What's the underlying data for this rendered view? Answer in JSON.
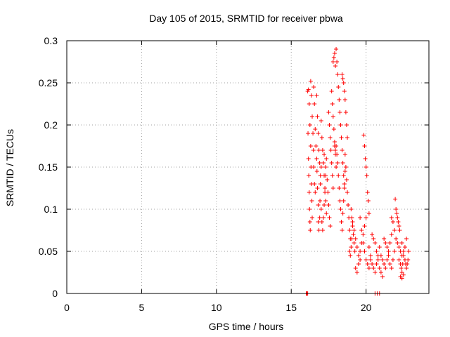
{
  "chart_data": {
    "type": "scatter",
    "title": "Day 105 of 2015, SRMTID for receiver pbwa",
    "xlabel": "GPS time / hours",
    "ylabel": "SRMTID / TECUs",
    "xlim": [
      0,
      24.2
    ],
    "ylim": [
      0,
      0.3
    ],
    "xticks": [
      0,
      5,
      10,
      15,
      20
    ],
    "xtick_labels": [
      "0",
      "5",
      "10",
      "15",
      "20"
    ],
    "yticks": [
      0,
      0.05,
      0.1,
      0.15,
      0.2,
      0.25,
      0.3
    ],
    "ytick_labels": [
      "0",
      "0.05",
      "0.1",
      "0.15",
      "0.2",
      "0.25",
      "0.3"
    ],
    "grid": true,
    "marker": "plus",
    "color": "#ff0000",
    "series": [
      {
        "name": "SRMTID",
        "points": [
          [
            16.0,
            0.0
          ],
          [
            16.05,
            0.0
          ],
          [
            16.1,
            0.0
          ],
          [
            16.1,
            0.24
          ],
          [
            16.12,
            0.19
          ],
          [
            16.15,
            0.16
          ],
          [
            16.17,
            0.14
          ],
          [
            16.2,
            0.12
          ],
          [
            16.22,
            0.1
          ],
          [
            16.25,
            0.085
          ],
          [
            16.27,
            0.075
          ],
          [
            16.15,
            0.242
          ],
          [
            16.2,
            0.225
          ],
          [
            16.25,
            0.2
          ],
          [
            16.3,
            0.175
          ],
          [
            16.32,
            0.15
          ],
          [
            16.35,
            0.13
          ],
          [
            16.38,
            0.11
          ],
          [
            16.4,
            0.09
          ],
          [
            16.3,
            0.252
          ],
          [
            16.35,
            0.235
          ],
          [
            16.4,
            0.21
          ],
          [
            16.45,
            0.19
          ],
          [
            16.48,
            0.17
          ],
          [
            16.5,
            0.15
          ],
          [
            16.55,
            0.13
          ],
          [
            16.6,
            0.12
          ],
          [
            16.5,
            0.245
          ],
          [
            16.55,
            0.225
          ],
          [
            16.6,
            0.195
          ],
          [
            16.65,
            0.175
          ],
          [
            16.7,
            0.16
          ],
          [
            16.72,
            0.145
          ],
          [
            16.75,
            0.125
          ],
          [
            16.8,
            0.105
          ],
          [
            16.8,
            0.085
          ],
          [
            16.85,
            0.075
          ],
          [
            16.9,
            0.09
          ],
          [
            16.92,
            0.11
          ],
          [
            16.95,
            0.13
          ],
          [
            17.0,
            0.15
          ],
          [
            16.7,
            0.235
          ],
          [
            16.75,
            0.21
          ],
          [
            16.8,
            0.19
          ],
          [
            16.85,
            0.17
          ],
          [
            16.9,
            0.155
          ],
          [
            16.95,
            0.14
          ],
          [
            17.0,
            0.205
          ],
          [
            17.05,
            0.185
          ],
          [
            17.1,
            0.17
          ],
          [
            17.15,
            0.155
          ],
          [
            17.2,
            0.14
          ],
          [
            17.25,
            0.125
          ],
          [
            17.3,
            0.11
          ],
          [
            17.35,
            0.095
          ],
          [
            17.0,
            0.1
          ],
          [
            17.05,
            0.085
          ],
          [
            17.1,
            0.075
          ],
          [
            17.15,
            0.09
          ],
          [
            17.2,
            0.105
          ],
          [
            17.25,
            0.12
          ],
          [
            17.3,
            0.14
          ],
          [
            17.35,
            0.16
          ],
          [
            17.2,
            0.165
          ],
          [
            17.3,
            0.15
          ],
          [
            17.4,
            0.135
          ],
          [
            17.45,
            0.12
          ],
          [
            17.5,
            0.105
          ],
          [
            17.55,
            0.09
          ],
          [
            17.6,
            0.08
          ],
          [
            17.5,
            0.215
          ],
          [
            17.55,
            0.2
          ],
          [
            17.6,
            0.185
          ],
          [
            17.65,
            0.17
          ],
          [
            17.7,
            0.155
          ],
          [
            17.75,
            0.14
          ],
          [
            17.8,
            0.125
          ],
          [
            17.7,
            0.24
          ],
          [
            17.75,
            0.225
          ],
          [
            17.8,
            0.21
          ],
          [
            17.85,
            0.195
          ],
          [
            17.9,
            0.18
          ],
          [
            17.95,
            0.165
          ],
          [
            18.0,
            0.15
          ],
          [
            17.8,
            0.275
          ],
          [
            17.85,
            0.28
          ],
          [
            17.9,
            0.285
          ],
          [
            17.95,
            0.27
          ],
          [
            18.0,
            0.29
          ],
          [
            18.05,
            0.275
          ],
          [
            18.1,
            0.26
          ],
          [
            18.15,
            0.245
          ],
          [
            18.2,
            0.23
          ],
          [
            18.25,
            0.215
          ],
          [
            18.3,
            0.2
          ],
          [
            18.35,
            0.185
          ],
          [
            18.4,
            0.17
          ],
          [
            18.45,
            0.155
          ],
          [
            18.5,
            0.14
          ],
          [
            18.55,
            0.125
          ],
          [
            17.9,
            0.175
          ],
          [
            17.95,
            0.17
          ],
          [
            18.0,
            0.175
          ],
          [
            18.05,
            0.165
          ],
          [
            18.1,
            0.155
          ],
          [
            18.15,
            0.14
          ],
          [
            18.2,
            0.125
          ],
          [
            18.25,
            0.11
          ],
          [
            18.3,
            0.1
          ],
          [
            18.35,
            0.085
          ],
          [
            18.4,
            0.075
          ],
          [
            18.45,
            0.095
          ],
          [
            18.5,
            0.11
          ],
          [
            18.55,
            0.13
          ],
          [
            18.6,
            0.145
          ],
          [
            18.4,
            0.26
          ],
          [
            18.45,
            0.255
          ],
          [
            18.5,
            0.25
          ],
          [
            18.55,
            0.24
          ],
          [
            18.6,
            0.23
          ],
          [
            18.65,
            0.215
          ],
          [
            18.7,
            0.2
          ],
          [
            18.75,
            0.185
          ],
          [
            18.6,
            0.165
          ],
          [
            18.65,
            0.15
          ],
          [
            18.7,
            0.135
          ],
          [
            18.75,
            0.12
          ],
          [
            18.8,
            0.105
          ],
          [
            18.85,
            0.09
          ],
          [
            18.9,
            0.075
          ],
          [
            18.95,
            0.065
          ],
          [
            18.9,
            0.05
          ],
          [
            18.95,
            0.045
          ],
          [
            19.0,
            0.055
          ],
          [
            19.05,
            0.065
          ],
          [
            19.1,
            0.08
          ],
          [
            19.15,
            0.07
          ],
          [
            19.2,
            0.06
          ],
          [
            19.25,
            0.05
          ],
          [
            19.0,
            0.1
          ],
          [
            19.05,
            0.09
          ],
          [
            19.1,
            0.085
          ],
          [
            19.2,
            0.075
          ],
          [
            19.3,
            0.065
          ],
          [
            19.4,
            0.055
          ],
          [
            19.5,
            0.045
          ],
          [
            19.6,
            0.04
          ],
          [
            19.3,
            0.03
          ],
          [
            19.4,
            0.025
          ],
          [
            19.5,
            0.035
          ],
          [
            19.6,
            0.05
          ],
          [
            19.7,
            0.06
          ],
          [
            19.8,
            0.07
          ],
          [
            19.9,
            0.08
          ],
          [
            20.0,
            0.09
          ],
          [
            19.6,
            0.09
          ],
          [
            19.7,
            0.075
          ],
          [
            19.8,
            0.06
          ],
          [
            19.9,
            0.05
          ],
          [
            20.0,
            0.04
          ],
          [
            20.1,
            0.035
          ],
          [
            20.2,
            0.03
          ],
          [
            20.3,
            0.04
          ],
          [
            19.85,
            0.188
          ],
          [
            19.9,
            0.175
          ],
          [
            19.95,
            0.16
          ],
          [
            20.0,
            0.15
          ],
          [
            20.05,
            0.14
          ],
          [
            20.1,
            0.12
          ],
          [
            20.15,
            0.11
          ],
          [
            20.2,
            0.095
          ],
          [
            20.2,
            0.055
          ],
          [
            20.3,
            0.045
          ],
          [
            20.4,
            0.035
          ],
          [
            20.5,
            0.03
          ],
          [
            20.6,
            0.025
          ],
          [
            20.7,
            0.035
          ],
          [
            20.8,
            0.045
          ],
          [
            20.9,
            0.055
          ],
          [
            20.4,
            0.07
          ],
          [
            20.5,
            0.065
          ],
          [
            20.6,
            0.06
          ],
          [
            20.7,
            0.05
          ],
          [
            20.8,
            0.04
          ],
          [
            20.9,
            0.03
          ],
          [
            21.0,
            0.025
          ],
          [
            21.1,
            0.02
          ],
          [
            20.6,
            0.0
          ],
          [
            20.75,
            0.0
          ],
          [
            20.9,
            0.0
          ],
          [
            21.0,
            0.045
          ],
          [
            21.1,
            0.04
          ],
          [
            21.2,
            0.035
          ],
          [
            21.3,
            0.03
          ],
          [
            21.4,
            0.04
          ],
          [
            21.5,
            0.05
          ],
          [
            21.6,
            0.06
          ],
          [
            21.7,
            0.07
          ],
          [
            21.2,
            0.065
          ],
          [
            21.3,
            0.06
          ],
          [
            21.4,
            0.055
          ],
          [
            21.5,
            0.045
          ],
          [
            21.6,
            0.035
          ],
          [
            21.7,
            0.03
          ],
          [
            21.8,
            0.04
          ],
          [
            21.9,
            0.05
          ],
          [
            21.7,
            0.09
          ],
          [
            21.8,
            0.085
          ],
          [
            21.9,
            0.075
          ],
          [
            22.0,
            0.065
          ],
          [
            22.1,
            0.06
          ],
          [
            22.2,
            0.055
          ],
          [
            22.3,
            0.05
          ],
          [
            22.4,
            0.045
          ],
          [
            21.95,
            0.112
          ],
          [
            22.0,
            0.1
          ],
          [
            22.05,
            0.095
          ],
          [
            22.1,
            0.09
          ],
          [
            22.15,
            0.085
          ],
          [
            22.2,
            0.08
          ],
          [
            22.25,
            0.075
          ],
          [
            22.2,
            0.04
          ],
          [
            22.3,
            0.035
          ],
          [
            22.35,
            0.03
          ],
          [
            22.4,
            0.025
          ],
          [
            22.45,
            0.035
          ],
          [
            22.5,
            0.045
          ],
          [
            22.6,
            0.055
          ],
          [
            22.7,
            0.065
          ],
          [
            22.4,
            0.06
          ],
          [
            22.5,
            0.05
          ],
          [
            22.6,
            0.04
          ],
          [
            22.65,
            0.035
          ],
          [
            22.7,
            0.03
          ],
          [
            22.75,
            0.035
          ],
          [
            22.8,
            0.04
          ],
          [
            22.85,
            0.05
          ],
          [
            22.3,
            0.02
          ],
          [
            22.4,
            0.018
          ],
          [
            22.5,
            0.022
          ]
        ]
      }
    ]
  }
}
